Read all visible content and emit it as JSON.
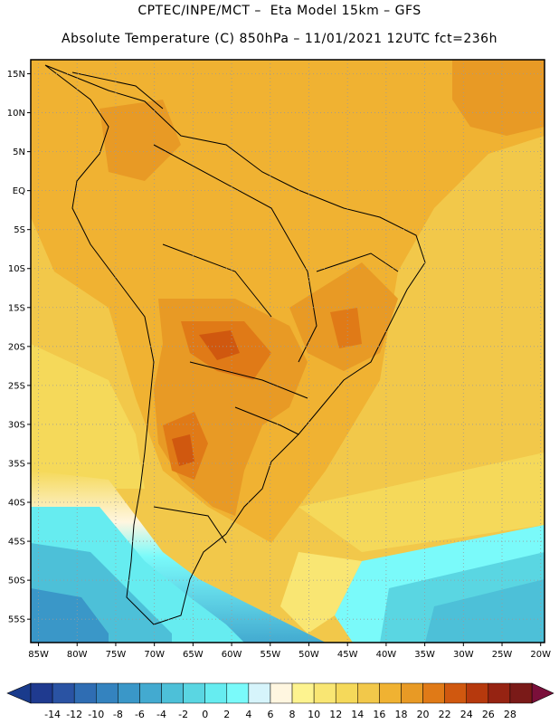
{
  "header": {
    "line1": "CPTEC/INPE/MCT –  Eta Model 15km – GFS",
    "line2": "Absolute Temperature (C) 850hPa – 11/01/2021 12UTC fct=236h"
  },
  "map": {
    "lat_labels": [
      "15N",
      "10N",
      "5N",
      "EQ",
      "5S",
      "10S",
      "15S",
      "20S",
      "25S",
      "30S",
      "35S",
      "40S",
      "45S",
      "50S",
      "55S"
    ],
    "lon_labels": [
      "85W",
      "80W",
      "75W",
      "70W",
      "65W",
      "60W",
      "55W",
      "50W",
      "45W",
      "40W",
      "35W",
      "30W",
      "25W",
      "20W"
    ],
    "lat_values": [
      15,
      10,
      5,
      0,
      -5,
      -10,
      -15,
      -20,
      -25,
      -30,
      -35,
      -40,
      -45,
      -50,
      -55
    ],
    "lon_values": [
      -85,
      -80,
      -75,
      -70,
      -65,
      -60,
      -55,
      -50,
      -45,
      -40,
      -35,
      -30,
      -25,
      -20
    ],
    "extent": {
      "lon_min": -86,
      "lon_max": -19.5,
      "lat_min": -58,
      "lat_max": 16.8
    }
  },
  "colorbar": {
    "labels": [
      "-14",
      "-12",
      "-10",
      "-8",
      "-6",
      "-4",
      "-2",
      "0",
      "2",
      "4",
      "6",
      "8",
      "10",
      "12",
      "14",
      "16",
      "18",
      "20",
      "22",
      "24",
      "26",
      "28"
    ],
    "bins": [
      "#1f3a8f",
      "#2a53a3",
      "#2f6db3",
      "#3483bf",
      "#3a97c8",
      "#43aad0",
      "#4dc0d8",
      "#5ad6e2",
      "#66ecf0",
      "#7afafa",
      "#d6f4fb",
      "#fff6e0",
      "#fdf38f",
      "#f9e673",
      "#f5d95a",
      "#f2c84a",
      "#f0b232",
      "#e89a25",
      "#e07a17",
      "#d0580f",
      "#b6390d",
      "#962312",
      "#7a1a18"
    ],
    "low_arrow": "#1a3b8c",
    "high_arrow": "#7a0f3a"
  }
}
